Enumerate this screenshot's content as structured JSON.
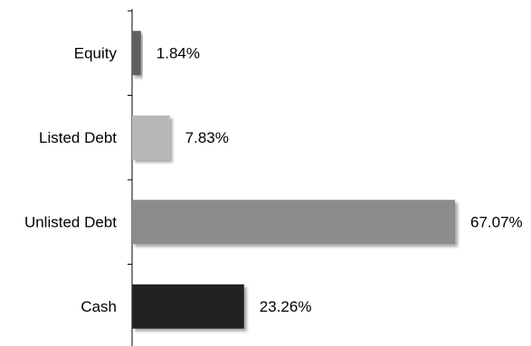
{
  "chart_data": {
    "type": "bar",
    "orientation": "horizontal",
    "categories": [
      "Equity",
      "Listed Debt",
      "Unlisted Debt",
      "Cash"
    ],
    "values": [
      1.84,
      7.83,
      67.07,
      23.26
    ],
    "value_labels": [
      "1.84%",
      "7.83%",
      "67.07%",
      "23.26%"
    ],
    "colors": [
      "#606060",
      "#b7b7b7",
      "#8c8c8c",
      "#222222"
    ],
    "xlim": [
      0,
      67.07
    ],
    "grid": false,
    "legend": "none"
  }
}
